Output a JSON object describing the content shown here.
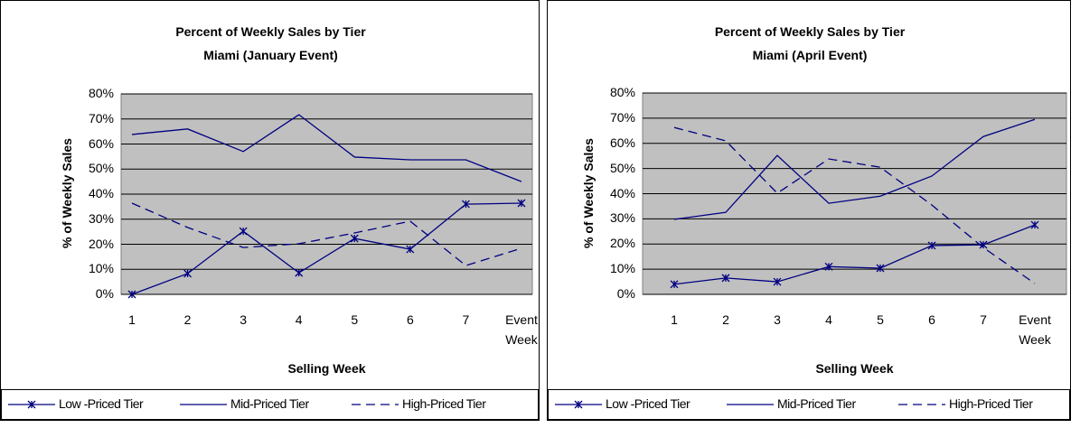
{
  "chart_data": [
    {
      "type": "line",
      "title": "Percent of Weekly Sales by Tier",
      "subtitle": "Miami (January Event)",
      "x_label": "Selling Week",
      "y_label": "% of Weekly Sales",
      "categories": [
        "1",
        "2",
        "3",
        "4",
        "5",
        "6",
        "7",
        "Event Week"
      ],
      "ylim": [
        0,
        80
      ],
      "yticks": [
        {
          "value": 0,
          "label": "0%"
        },
        {
          "value": 10,
          "label": "10%"
        },
        {
          "value": 20,
          "label": "20%"
        },
        {
          "value": 30,
          "label": "30%"
        },
        {
          "value": 40,
          "label": "40%"
        },
        {
          "value": 50,
          "label": "50%"
        },
        {
          "value": 60,
          "label": "60%"
        },
        {
          "value": 70,
          "label": "70%"
        },
        {
          "value": 80,
          "label": "80%"
        }
      ],
      "grid": true,
      "series": [
        {
          "name": "Low -Priced Tier",
          "color": "#000080",
          "dash": "solid",
          "marker": "star",
          "values": [
            0,
            8.3,
            25.2,
            8.6,
            22.3,
            18,
            36,
            36.4
          ]
        },
        {
          "name": "Mid-Priced Tier",
          "color": "#000080",
          "dash": "solid",
          "marker": "none",
          "values": [
            63.8,
            66,
            57,
            71.7,
            54.8,
            53.7,
            53.7,
            45
          ]
        },
        {
          "name": "High-Priced Tier",
          "color": "#000080",
          "dash": "dashed",
          "marker": "none",
          "values": [
            36.4,
            26.7,
            18.7,
            20.2,
            24.5,
            29.2,
            11.5,
            18.4
          ]
        }
      ]
    },
    {
      "type": "line",
      "title": "Percent of Weekly Sales by Tier",
      "subtitle": "Miami (April Event)",
      "x_label": "Selling Week",
      "y_label": "% of Weekly Sales",
      "categories": [
        "1",
        "2",
        "3",
        "4",
        "5",
        "6",
        "7",
        "Event Week"
      ],
      "ylim": [
        0,
        80
      ],
      "yticks": [
        {
          "value": 0,
          "label": "0%"
        },
        {
          "value": 10,
          "label": "10%"
        },
        {
          "value": 20,
          "label": "20%"
        },
        {
          "value": 30,
          "label": "30%"
        },
        {
          "value": 40,
          "label": "40%"
        },
        {
          "value": 50,
          "label": "50%"
        },
        {
          "value": 60,
          "label": "60%"
        },
        {
          "value": 70,
          "label": "70%"
        },
        {
          "value": 80,
          "label": "80%"
        }
      ],
      "grid": true,
      "series": [
        {
          "name": "Low -Priced Tier",
          "color": "#000080",
          "dash": "solid",
          "marker": "star",
          "values": [
            4,
            6.5,
            5,
            11,
            10.4,
            19.4,
            19.7,
            27.6
          ]
        },
        {
          "name": "Mid-Priced Tier",
          "color": "#000080",
          "dash": "solid",
          "marker": "none",
          "values": [
            29.8,
            32.6,
            55.2,
            36.2,
            39,
            47,
            62.7,
            69.5
          ]
        },
        {
          "name": "High-Priced Tier",
          "color": "#000080",
          "dash": "dashed",
          "marker": "none",
          "values": [
            66.3,
            61,
            40.2,
            53.8,
            50.5,
            35.5,
            18.6,
            4.3
          ]
        }
      ]
    }
  ]
}
